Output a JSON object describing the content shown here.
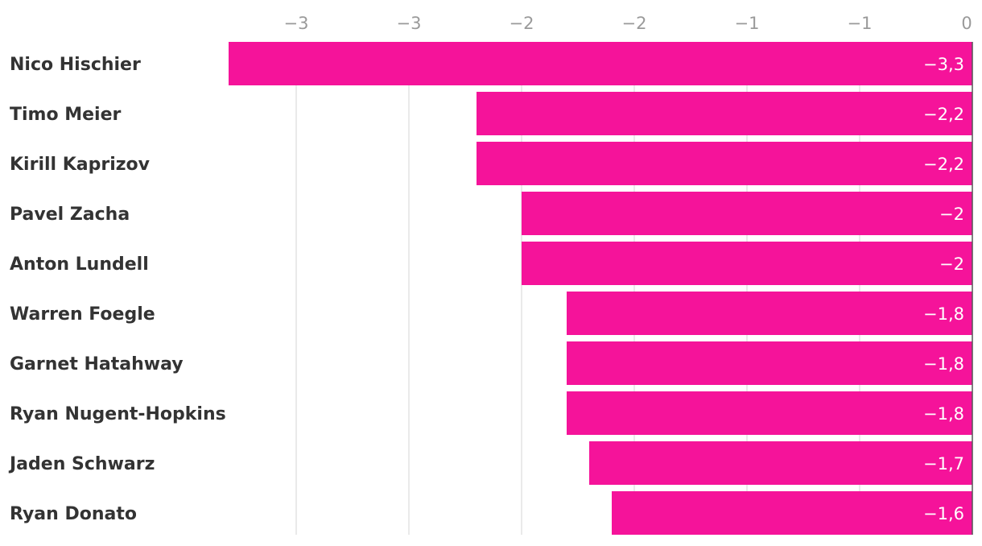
{
  "chart_data": {
    "type": "bar",
    "orientation": "horizontal",
    "categories": [
      "Nico Hischier",
      "Timo Meier",
      "Kirill Kaprizov",
      "Pavel Zacha",
      "Anton Lundell",
      "Warren Foegle",
      "Garnet Hatahway",
      "Ryan Nugent-Hopkins",
      "Jaden Schwarz",
      "Ryan Donato"
    ],
    "values": [
      -3.3,
      -2.2,
      -2.2,
      -2.0,
      -2.0,
      -1.8,
      -1.8,
      -1.8,
      -1.7,
      -1.6
    ],
    "value_labels": [
      "−3,3",
      "−2,2",
      "−2,2",
      "−2",
      "−2",
      "−1,8",
      "−1,8",
      "−1,8",
      "−1,7",
      "−1,6"
    ],
    "x_ticks": [
      -3.0,
      -2.5,
      -2.0,
      -1.5,
      -1.0,
      -0.5,
      0
    ],
    "x_tick_labels": [
      "−3",
      "−3",
      "−2",
      "−2",
      "−1",
      "−1",
      "0"
    ],
    "xlim": [
      -3.3,
      0
    ],
    "axis_position": "top",
    "grid": true,
    "bar_color": "#f5139a"
  }
}
